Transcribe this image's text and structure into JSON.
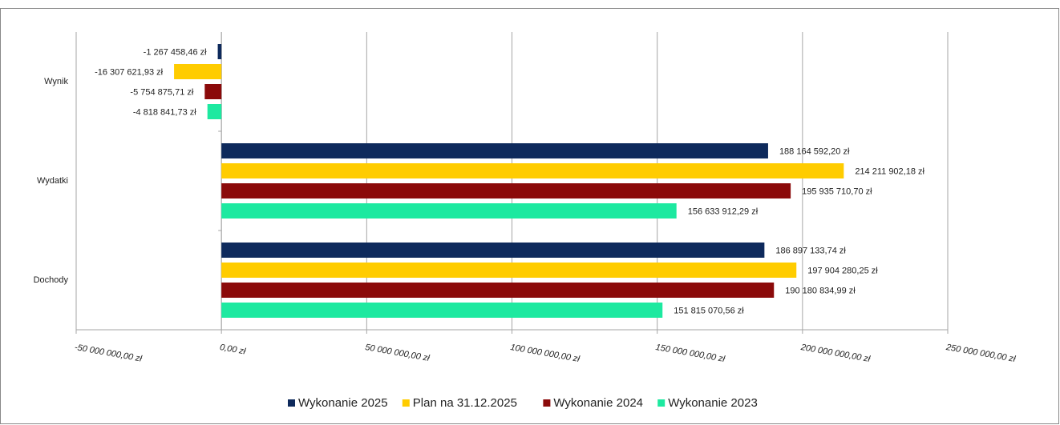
{
  "chart_data": {
    "type": "bar",
    "orientation": "horizontal",
    "categories": [
      "Wynik",
      "Wydatki",
      "Dochody"
    ],
    "series": [
      {
        "name": "Wykonanie 2025",
        "color": "#0e2a5c",
        "values": [
          -1267458.46,
          188164592.2,
          186897133.74
        ],
        "value_labels": [
          "-1 267 458,46 zł",
          "188 164 592,20 zł",
          "186 897 133,74 zł"
        ]
      },
      {
        "name": "Plan na 31.12.2025",
        "color": "#ffcc00",
        "values": [
          -16307621.93,
          214211902.18,
          197904280.25
        ],
        "value_labels": [
          "-16 307 621,93 zł",
          "214 211 902,18 zł",
          "197 904 280,25 zł"
        ]
      },
      {
        "name": "Wykonanie 2024",
        "color": "#8b0a0a",
        "values": [
          -5754875.71,
          195935710.7,
          190180834.99
        ],
        "value_labels": [
          "-5 754 875,71 zł",
          "195 935 710,70 zł",
          "190 180 834,99 zł"
        ]
      },
      {
        "name": "Wykonanie 2023",
        "color": "#1de9a0",
        "values": [
          -4818841.73,
          156633912.29,
          151815070.56
        ],
        "value_labels": [
          "-4 818 841,73 zł",
          "156 633 912,29 zł",
          "151 815 070,56 zł"
        ]
      }
    ],
    "xlim": [
      -50000000,
      250000000
    ],
    "xticks": [
      {
        "value": -50000000,
        "label": "-50 000 000,00 zł"
      },
      {
        "value": 0,
        "label": "0,00 zł"
      },
      {
        "value": 50000000,
        "label": "50 000 000,00 zł"
      },
      {
        "value": 100000000,
        "label": "100 000 000,00 zł"
      },
      {
        "value": 150000000,
        "label": "150 000 000,00 zł"
      },
      {
        "value": 200000000,
        "label": "200 000 000,00 zł"
      },
      {
        "value": 250000000,
        "label": "250 000 000,00 zł"
      }
    ],
    "grid": true,
    "legend": "bottom"
  }
}
